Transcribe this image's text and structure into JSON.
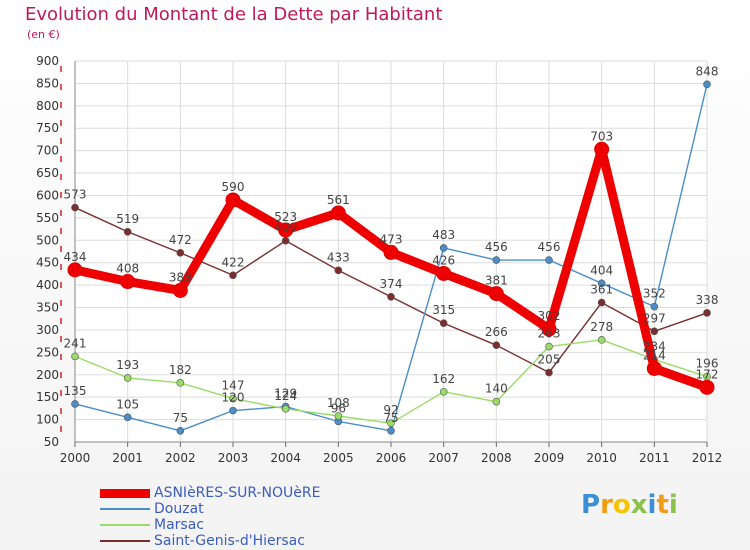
{
  "chart_data": {
    "type": "line",
    "title": "Evolution du Montant de la Dette par Habitant",
    "subtitle": "(en €)",
    "categories": [
      "2000",
      "2001",
      "2002",
      "2003",
      "2004",
      "2005",
      "2006",
      "2007",
      "2008",
      "2009",
      "2010",
      "2011",
      "2012"
    ],
    "ylim": [
      50,
      900
    ],
    "yticks": [
      50,
      100,
      150,
      200,
      250,
      300,
      350,
      400,
      450,
      500,
      550,
      600,
      650,
      700,
      750,
      800,
      850,
      900
    ],
    "grid": true,
    "legend_position": "bottom-left",
    "series": [
      {
        "name": "ASNIèRES-SUR-NOUèRE",
        "color": "#ee0000",
        "values": [
          434,
          408,
          388,
          590,
          523,
          561,
          473,
          426,
          381,
          302,
          703,
          214,
          172
        ]
      },
      {
        "name": "Douzat",
        "color": "#4a8ec9",
        "values": [
          135,
          105,
          75,
          120,
          129,
          96,
          75,
          483,
          456,
          456,
          404,
          352,
          848
        ]
      },
      {
        "name": "Marsac",
        "color": "#99dd66",
        "values": [
          241,
          193,
          182,
          147,
          124,
          108,
          92,
          162,
          140,
          263,
          278,
          234,
          196
        ]
      },
      {
        "name": "Saint-Genis-d'Hiersac",
        "color": "#7a2e2e",
        "values": [
          573,
          519,
          472,
          422,
          499,
          433,
          374,
          315,
          266,
          205,
          361,
          297,
          338
        ]
      }
    ]
  },
  "logo": {
    "letters": [
      "P",
      "r",
      "o",
      "x",
      "i",
      "t",
      "i"
    ],
    "colors": [
      "#3a8fd8",
      "#f39c12",
      "#f7c400",
      "#8bc34a",
      "#3a8fd8",
      "#f39c12",
      "#8bc34a"
    ]
  }
}
